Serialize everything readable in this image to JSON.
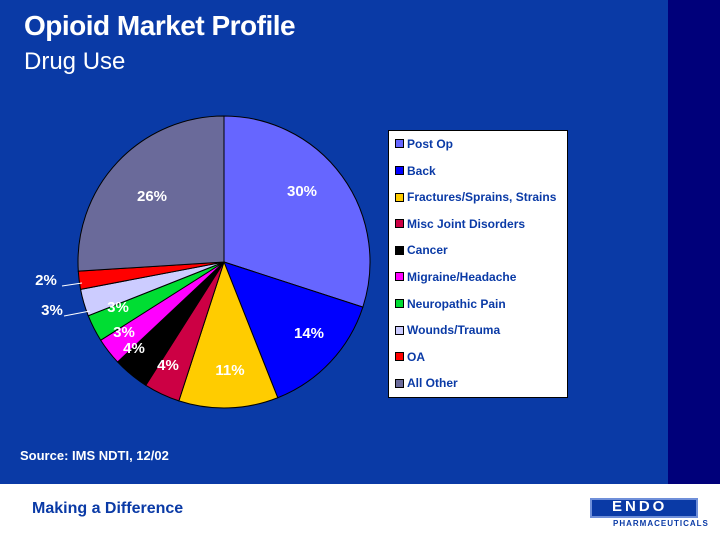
{
  "header": {
    "title": "Opioid Market Profile",
    "subtitle": "Drug Use"
  },
  "chart_data": {
    "type": "pie",
    "title": "",
    "categories": [
      "Post Op",
      "Back",
      "Fractures/Sprains, Strains",
      "Misc Joint Disorders",
      "Cancer",
      "Migraine/Headache",
      "Neuropathic Pain",
      "Wounds/Trauma",
      "OA",
      "All Other"
    ],
    "values": [
      30,
      14,
      11,
      4,
      4,
      3,
      3,
      3,
      2,
      26
    ],
    "labels": [
      "30%",
      "14%",
      "11%",
      "4%",
      "4%",
      "3%",
      "3%",
      "3%",
      "2%",
      "26%"
    ],
    "colors": [
      "#6666ff",
      "#0000ff",
      "#ffcc00",
      "#cc0044",
      "#000000",
      "#ff00ff",
      "#00dd33",
      "#ccccff",
      "#ff0000",
      "#6a6a9a"
    ],
    "legend_position": "right"
  },
  "source": "Source: IMS NDTI, 12/02",
  "footer": {
    "tagline": "Making a Difference",
    "logo": "ENDO",
    "logo_sub": "PHARMACEUTICALS"
  }
}
